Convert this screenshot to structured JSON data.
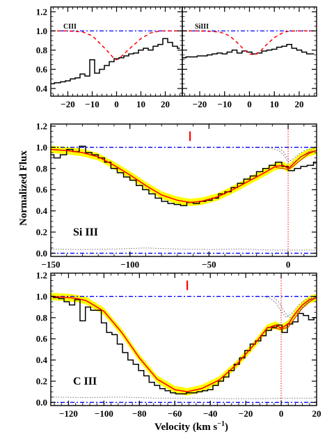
{
  "figure": {
    "ylabel": "Normalized Flux",
    "xlabel_main": "Velocity (km s",
    "xlabel_sup": "−1",
    "xlabel_close": ")"
  },
  "colors": {
    "data": "#000000",
    "model": "#ff0000",
    "band": "#ffff00",
    "continuum": "#0000ff",
    "error": "#777777",
    "marker": "#ff0000"
  },
  "chart_data": [
    {
      "id": "top-left",
      "type": "line",
      "label": "CIII",
      "xlim": [
        -27,
        27
      ],
      "ylim": [
        0.32,
        1.25
      ],
      "xticks": [
        -20,
        -10,
        0,
        10,
        20
      ],
      "yticks": [
        0.4,
        0.6,
        0.8,
        1.0,
        1.2
      ],
      "continuum": 1.0,
      "series": [
        {
          "kind": "data-step",
          "x": [
            -27,
            -24,
            -22,
            -20,
            -18,
            -16,
            -14,
            -12,
            -10,
            -8,
            -6,
            -4,
            -2,
            0,
            2,
            4,
            6,
            8,
            10,
            12,
            14,
            16,
            18,
            20,
            22,
            24,
            26
          ],
          "y": [
            0.45,
            0.46,
            0.47,
            0.48,
            0.5,
            0.51,
            0.55,
            0.53,
            0.7,
            0.56,
            0.6,
            0.64,
            0.68,
            0.71,
            0.72,
            0.74,
            0.76,
            0.77,
            0.8,
            0.82,
            0.8,
            0.84,
            0.86,
            0.92,
            0.88,
            0.84,
            0.82
          ]
        },
        {
          "kind": "model-dashed",
          "x": [
            -27,
            -20,
            -14,
            -10,
            -6,
            -3,
            -1,
            0,
            1,
            3,
            6,
            10,
            14,
            18,
            22,
            27
          ],
          "y": [
            1.0,
            1.0,
            0.99,
            0.95,
            0.85,
            0.77,
            0.71,
            0.7,
            0.71,
            0.76,
            0.83,
            0.92,
            0.98,
            1.0,
            1.0,
            1.0
          ]
        }
      ]
    },
    {
      "id": "top-right",
      "type": "line",
      "label": "SiIII",
      "xlim": [
        -27,
        27
      ],
      "ylim": [
        0.32,
        1.25
      ],
      "xticks": [
        -20,
        -10,
        0,
        10,
        20
      ],
      "series": [
        {
          "kind": "data-step",
          "x": [
            -27,
            -24,
            -22,
            -20,
            -18,
            -16,
            -14,
            -12,
            -10,
            -8,
            -6,
            -4,
            -2,
            0,
            2,
            4,
            6,
            8,
            10,
            12,
            14,
            16,
            18,
            20,
            22,
            24,
            26
          ],
          "y": [
            0.72,
            0.73,
            0.73,
            0.74,
            0.74,
            0.75,
            0.76,
            0.77,
            0.76,
            0.78,
            0.8,
            0.77,
            0.79,
            0.78,
            0.76,
            0.77,
            0.79,
            0.8,
            0.81,
            0.83,
            0.84,
            0.86,
            0.82,
            0.8,
            0.78,
            0.76,
            0.76
          ]
        },
        {
          "kind": "model-dashed",
          "x": [
            -27,
            -20,
            -12,
            -8,
            -5,
            -2,
            0,
            2,
            4,
            7,
            10,
            14,
            18,
            22,
            27
          ],
          "y": [
            1.0,
            1.0,
            0.99,
            0.95,
            0.88,
            0.8,
            0.76,
            0.75,
            0.78,
            0.86,
            0.93,
            0.99,
            1.0,
            1.0,
            1.0
          ]
        }
      ]
    },
    {
      "id": "middle",
      "type": "line",
      "ion": "Si III",
      "xlim": [
        -150,
        18
      ],
      "ylim": [
        -0.03,
        1.22
      ],
      "xticks": [
        -150,
        -100,
        -50,
        0
      ],
      "yticks": [
        0.0,
        0.2,
        0.4,
        0.6,
        0.8,
        1.0,
        1.2
      ],
      "continuum": 1.0,
      "marker_x": -62,
      "vline_x": 0,
      "series": [
        {
          "kind": "data-step",
          "x": [
            -150,
            -146,
            -142,
            -138,
            -134,
            -130,
            -126,
            -122,
            -118,
            -114,
            -110,
            -106,
            -102,
            -98,
            -94,
            -90,
            -86,
            -82,
            -78,
            -74,
            -70,
            -66,
            -62,
            -58,
            -54,
            -50,
            -46,
            -42,
            -38,
            -34,
            -30,
            -26,
            -22,
            -18,
            -14,
            -10,
            -6,
            -2,
            2,
            6,
            10,
            14,
            18
          ],
          "y": [
            0.93,
            0.9,
            0.93,
            0.98,
            0.96,
            1.01,
            0.95,
            0.93,
            0.9,
            0.86,
            0.8,
            0.76,
            0.72,
            0.69,
            0.64,
            0.6,
            0.56,
            0.52,
            0.49,
            0.47,
            0.46,
            0.45,
            0.48,
            0.47,
            0.49,
            0.5,
            0.52,
            0.56,
            0.58,
            0.62,
            0.66,
            0.7,
            0.73,
            0.77,
            0.8,
            0.83,
            0.86,
            0.82,
            0.78,
            0.8,
            0.82,
            0.83,
            0.86
          ]
        },
        {
          "kind": "model",
          "x": [
            -150,
            -140,
            -130,
            -120,
            -110,
            -100,
            -90,
            -80,
            -70,
            -62,
            -55,
            -45,
            -35,
            -25,
            -15,
            -8,
            -3,
            0,
            3,
            8,
            13,
            18
          ],
          "y": [
            0.98,
            0.97,
            0.95,
            0.91,
            0.83,
            0.74,
            0.64,
            0.55,
            0.5,
            0.48,
            0.49,
            0.53,
            0.6,
            0.68,
            0.76,
            0.82,
            0.83,
            0.8,
            0.84,
            0.91,
            0.95,
            0.97
          ]
        },
        {
          "kind": "model-alt",
          "x": [
            -8,
            -3,
            0,
            3,
            8,
            13,
            18
          ],
          "y": [
            0.81,
            0.8,
            0.79,
            0.82,
            0.88,
            0.94,
            0.97
          ]
        },
        {
          "kind": "component",
          "x": [
            -14,
            -10,
            -6,
            -3,
            0,
            4,
            8,
            12,
            18
          ],
          "y": [
            1.0,
            0.99,
            0.97,
            0.93,
            0.86,
            0.9,
            0.95,
            0.98,
            1.0
          ]
        },
        {
          "kind": "component",
          "x": [
            -6,
            -3,
            0,
            3,
            6,
            10,
            14,
            18
          ],
          "y": [
            0.99,
            0.96,
            0.89,
            0.86,
            0.88,
            0.93,
            0.97,
            1.0
          ]
        },
        {
          "kind": "error",
          "x": [
            -150,
            -130,
            -110,
            -90,
            -80,
            -70,
            -50,
            -30,
            -10,
            18
          ],
          "y": [
            0.04,
            0.035,
            0.04,
            0.05,
            0.045,
            0.04,
            0.035,
            0.04,
            0.03,
            0.03
          ]
        }
      ]
    },
    {
      "id": "bottom",
      "type": "line",
      "ion": "C III",
      "xlim": [
        -130,
        20
      ],
      "ylim": [
        -0.03,
        1.22
      ],
      "xticks": [
        -120,
        -100,
        -80,
        -60,
        -40,
        -20,
        0,
        20
      ],
      "yticks": [
        0.0,
        0.2,
        0.4,
        0.6,
        0.8,
        1.0,
        1.2
      ],
      "continuum": 1.0,
      "marker_x": -53,
      "vline_x": 0,
      "series": [
        {
          "kind": "data-step",
          "x": [
            -130,
            -127,
            -124,
            -121,
            -118,
            -115,
            -112,
            -109,
            -106,
            -103,
            -100,
            -97,
            -94,
            -91,
            -88,
            -85,
            -82,
            -79,
            -76,
            -73,
            -70,
            -67,
            -64,
            -61,
            -58,
            -55,
            -52,
            -49,
            -46,
            -43,
            -40,
            -37,
            -34,
            -31,
            -28,
            -25,
            -22,
            -19,
            -16,
            -13,
            -10,
            -7,
            -4,
            -1,
            2,
            5,
            8,
            11,
            14,
            17,
            20
          ],
          "y": [
            1.0,
            0.99,
            0.98,
            0.95,
            0.92,
            0.97,
            0.77,
            0.9,
            0.87,
            0.87,
            0.75,
            0.66,
            0.64,
            0.55,
            0.47,
            0.4,
            0.36,
            0.3,
            0.25,
            0.19,
            0.16,
            0.13,
            0.11,
            0.09,
            0.08,
            0.08,
            0.09,
            0.09,
            0.1,
            0.11,
            0.12,
            0.16,
            0.2,
            0.24,
            0.3,
            0.36,
            0.42,
            0.49,
            0.55,
            0.58,
            0.63,
            0.68,
            0.71,
            0.73,
            0.66,
            0.74,
            0.76,
            0.84,
            0.82,
            0.78,
            0.8
          ]
        },
        {
          "kind": "model",
          "x": [
            -130,
            -120,
            -115,
            -110,
            -100,
            -90,
            -80,
            -70,
            -60,
            -53,
            -45,
            -35,
            -25,
            -15,
            -8,
            -3,
            0,
            4,
            8,
            12,
            16,
            20
          ],
          "y": [
            1.0,
            0.99,
            0.98,
            0.96,
            0.86,
            0.66,
            0.42,
            0.22,
            0.12,
            0.1,
            0.13,
            0.21,
            0.36,
            0.55,
            0.7,
            0.73,
            0.7,
            0.74,
            0.84,
            0.92,
            0.97,
            0.99
          ]
        },
        {
          "kind": "model-alt",
          "x": [
            -8,
            -4,
            0,
            4,
            8,
            12,
            16,
            20
          ],
          "y": [
            0.71,
            0.7,
            0.69,
            0.71,
            0.8,
            0.89,
            0.95,
            0.99
          ]
        },
        {
          "kind": "component",
          "x": [
            -10,
            -6,
            -3,
            0,
            3,
            6,
            10,
            14,
            20
          ],
          "y": [
            1.0,
            0.98,
            0.94,
            0.86,
            0.8,
            0.84,
            0.92,
            0.97,
            1.0
          ]
        },
        {
          "kind": "component",
          "x": [
            -4,
            -1,
            2,
            5,
            8,
            12,
            16,
            20
          ],
          "y": [
            0.99,
            0.94,
            0.85,
            0.8,
            0.82,
            0.9,
            0.96,
            1.0
          ]
        },
        {
          "kind": "error",
          "x": [
            -130,
            -110,
            -90,
            -70,
            -50,
            -30,
            -10,
            0,
            20
          ],
          "y": [
            0.05,
            0.045,
            0.05,
            0.04,
            0.04,
            0.035,
            0.035,
            0.04,
            0.04
          ]
        }
      ]
    }
  ]
}
